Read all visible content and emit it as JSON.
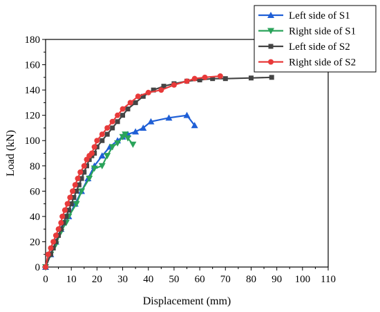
{
  "chart_data": {
    "type": "line",
    "title": "",
    "xlabel": "Displacement  (mm)",
    "ylabel": "Load  (kN)",
    "xlim": [
      0,
      110
    ],
    "ylim": [
      0,
      180
    ],
    "xticks": [
      "0",
      "10",
      "20",
      "30",
      "40",
      "50",
      "60",
      "70",
      "80",
      "90",
      "100",
      "110"
    ],
    "yticks": [
      "0",
      "20",
      "40",
      "60",
      "80",
      "100",
      "120",
      "140",
      "160",
      "180"
    ],
    "grid": false,
    "legend_position": "top-right",
    "series": [
      {
        "name": "Left side of S1",
        "color": "#1f5fd6",
        "marker": "triangle-up",
        "points": [
          [
            0,
            0
          ],
          [
            2,
            10
          ],
          [
            4,
            20
          ],
          [
            6,
            30
          ],
          [
            9,
            40
          ],
          [
            11.5,
            50
          ],
          [
            14,
            60
          ],
          [
            16.5,
            70
          ],
          [
            19,
            80
          ],
          [
            22,
            88
          ],
          [
            25,
            95
          ],
          [
            28,
            100
          ],
          [
            30,
            103
          ],
          [
            32,
            105
          ],
          [
            35,
            107
          ],
          [
            38,
            110
          ],
          [
            41,
            115
          ],
          [
            48,
            118
          ],
          [
            55,
            120
          ],
          [
            58,
            112
          ]
        ]
      },
      {
        "name": "Right side of S1",
        "color": "#2aa35a",
        "marker": "triangle-down",
        "points": [
          [
            0,
            0
          ],
          [
            2,
            10
          ],
          [
            4,
            18
          ],
          [
            6,
            28
          ],
          [
            8,
            35
          ],
          [
            9,
            40
          ],
          [
            12,
            50
          ],
          [
            14,
            60
          ],
          [
            17,
            70
          ],
          [
            19,
            78
          ],
          [
            22,
            80
          ],
          [
            24,
            88
          ],
          [
            26,
            95
          ],
          [
            28,
            98
          ],
          [
            30,
            103
          ],
          [
            31,
            105
          ],
          [
            32,
            102
          ],
          [
            34,
            97
          ]
        ]
      },
      {
        "name": "Left side of S2",
        "color": "#444444",
        "marker": "square",
        "points": [
          [
            0,
            0
          ],
          [
            2,
            10
          ],
          [
            3,
            15
          ],
          [
            4,
            20
          ],
          [
            5,
            25
          ],
          [
            6,
            30
          ],
          [
            7,
            35
          ],
          [
            8,
            40
          ],
          [
            9,
            45
          ],
          [
            10,
            50
          ],
          [
            11,
            55
          ],
          [
            12,
            60
          ],
          [
            13,
            65
          ],
          [
            14,
            70
          ],
          [
            15,
            75
          ],
          [
            16,
            80
          ],
          [
            17,
            85
          ],
          [
            18,
            88
          ],
          [
            19,
            90
          ],
          [
            20,
            95
          ],
          [
            22,
            100
          ],
          [
            24,
            105
          ],
          [
            26,
            110
          ],
          [
            28,
            115
          ],
          [
            30,
            120
          ],
          [
            32,
            125
          ],
          [
            35,
            130
          ],
          [
            38,
            135
          ],
          [
            42,
            140
          ],
          [
            46,
            143
          ],
          [
            50,
            145
          ],
          [
            55,
            147
          ],
          [
            60,
            148
          ],
          [
            65,
            149
          ],
          [
            70,
            149
          ],
          [
            80,
            149.5
          ],
          [
            88,
            150
          ]
        ]
      },
      {
        "name": "Right side of S2",
        "color": "#e83a3a",
        "marker": "circle",
        "points": [
          [
            0,
            0
          ],
          [
            1,
            10
          ],
          [
            2,
            15
          ],
          [
            3,
            20
          ],
          [
            4,
            25
          ],
          [
            5,
            30
          ],
          [
            6,
            35
          ],
          [
            6.5,
            40
          ],
          [
            7.5,
            45
          ],
          [
            8.5,
            50
          ],
          [
            9.5,
            55
          ],
          [
            10.5,
            60
          ],
          [
            11.5,
            65
          ],
          [
            12.5,
            70
          ],
          [
            13.5,
            75
          ],
          [
            15,
            80
          ],
          [
            16,
            85
          ],
          [
            17,
            88
          ],
          [
            18,
            90
          ],
          [
            19,
            95
          ],
          [
            20,
            100
          ],
          [
            22,
            105
          ],
          [
            24,
            110
          ],
          [
            26,
            115
          ],
          [
            28,
            120
          ],
          [
            30,
            125
          ],
          [
            33,
            130
          ],
          [
            36,
            135
          ],
          [
            40,
            138
          ],
          [
            45,
            140
          ],
          [
            50,
            144
          ],
          [
            55,
            147
          ],
          [
            58,
            149
          ],
          [
            62,
            150
          ],
          [
            68,
            151
          ]
        ]
      }
    ]
  }
}
